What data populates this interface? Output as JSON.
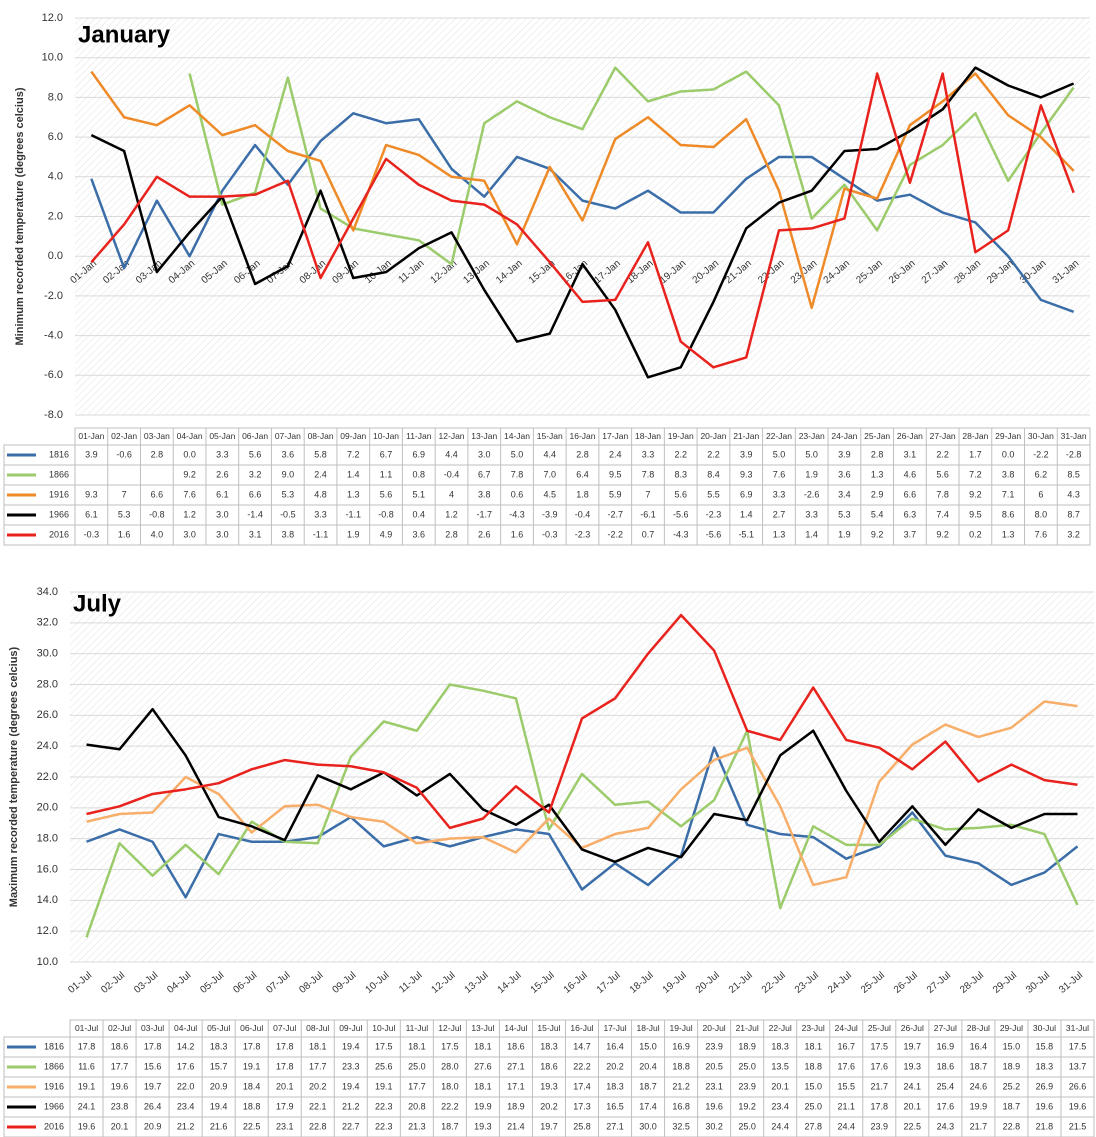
{
  "chart_data": [
    {
      "type": "line",
      "title": "January",
      "y_label": "Minimum recorded temperature (degrees celcius)",
      "categories": [
        "01-Jan",
        "02-Jan",
        "03-Jan",
        "04-Jan",
        "05-Jan",
        "06-Jan",
        "07-Jan",
        "08-Jan",
        "09-Jan",
        "10-Jan",
        "11-Jan",
        "12-Jan",
        "13-Jan",
        "14-Jan",
        "15-Jan",
        "16-Jan",
        "17-Jan",
        "18-Jan",
        "19-Jan",
        "20-Jan",
        "21-Jan",
        "22-Jan",
        "23-Jan",
        "24-Jan",
        "25-Jan",
        "26-Jan",
        "27-Jan",
        "28-Jan",
        "29-Jan",
        "30-Jan",
        "31-Jan"
      ],
      "series": [
        {
          "name": "1816",
          "color": "#3b6ea8",
          "values": [
            3.9,
            -0.6,
            2.8,
            0.0,
            3.3,
            5.6,
            3.6,
            5.8,
            7.2,
            6.7,
            6.9,
            4.4,
            3.0,
            5.0,
            4.4,
            2.8,
            2.4,
            3.3,
            2.2,
            2.2,
            3.9,
            5.0,
            5.0,
            3.9,
            2.8,
            3.1,
            2.2,
            1.7,
            0.0,
            -2.2,
            -2.8
          ],
          "value_labels": [
            "3.9",
            "-0.6",
            "2.8",
            "0.0",
            "3.3",
            "5.6",
            "3.6",
            "5.8",
            "7.2",
            "6.7",
            "6.9",
            "4.4",
            "3.0",
            "5.0",
            "4.4",
            "2.8",
            "2.4",
            "3.3",
            "2.2",
            "2.2",
            "3.9",
            "5.0",
            "5.0",
            "3.9",
            "2.8",
            "3.1",
            "2.2",
            "1.7",
            "0.0",
            "-2.2",
            "-2.8"
          ]
        },
        {
          "name": "1866",
          "color": "#9bcb6b",
          "values": [
            null,
            null,
            null,
            9.2,
            2.6,
            3.2,
            9.0,
            2.4,
            1.4,
            1.1,
            0.8,
            -0.4,
            6.7,
            7.8,
            7.0,
            6.4,
            9.5,
            7.8,
            8.3,
            8.4,
            9.3,
            7.6,
            1.9,
            3.6,
            1.3,
            4.6,
            5.6,
            7.2,
            3.8,
            6.2,
            8.5
          ],
          "value_labels": [
            null,
            null,
            null,
            "9.2",
            "2.6",
            "3.2",
            "9.0",
            "2.4",
            "1.4",
            "1.1",
            "0.8",
            "-0.4",
            "6.7",
            "7.8",
            "7.0",
            "6.4",
            "9.5",
            "7.8",
            "8.3",
            "8.4",
            "9.3",
            "7.6",
            "1.9",
            "3.6",
            "1.3",
            "4.6",
            "5.6",
            "7.2",
            "3.8",
            "6.2",
            "8.5"
          ]
        },
        {
          "name": "1916",
          "color": "#ee8a28",
          "values": [
            9.3,
            7,
            6.6,
            7.6,
            6.1,
            6.6,
            5.3,
            4.8,
            1.3,
            5.6,
            5.1,
            4,
            3.8,
            0.6,
            4.5,
            1.8,
            5.9,
            7,
            5.6,
            5.5,
            6.9,
            3.3,
            -2.6,
            3.4,
            2.9,
            6.6,
            7.8,
            9.2,
            7.1,
            6,
            4.3
          ],
          "value_labels": [
            "9.3",
            "7",
            "6.6",
            "7.6",
            "6.1",
            "6.6",
            "5.3",
            "4.8",
            "1.3",
            "5.6",
            "5.1",
            "4",
            "3.8",
            "0.6",
            "4.5",
            "1.8",
            "5.9",
            "7",
            "5.6",
            "5.5",
            "6.9",
            "3.3",
            "-2.6",
            "3.4",
            "2.9",
            "6.6",
            "7.8",
            "9.2",
            "7.1",
            "6",
            "4.3"
          ]
        },
        {
          "name": "1966",
          "color": "#000000",
          "values": [
            6.1,
            5.3,
            -0.8,
            1.2,
            3.0,
            -1.4,
            -0.5,
            3.3,
            -1.1,
            -0.8,
            0.4,
            1.2,
            -1.7,
            -4.3,
            -3.9,
            -0.4,
            -2.7,
            -6.1,
            -5.6,
            -2.3,
            1.4,
            2.7,
            3.3,
            5.3,
            5.4,
            6.3,
            7.4,
            9.5,
            8.6,
            8.0,
            8.7
          ],
          "value_labels": [
            "6.1",
            "5.3",
            "-0.8",
            "1.2",
            "3.0",
            "-1.4",
            "-0.5",
            "3.3",
            "-1.1",
            "-0.8",
            "0.4",
            "1.2",
            "-1.7",
            "-4.3",
            "-3.9",
            "-0.4",
            "-2.7",
            "-6.1",
            "-5.6",
            "-2.3",
            "1.4",
            "2.7",
            "3.3",
            "5.3",
            "5.4",
            "6.3",
            "7.4",
            "9.5",
            "8.6",
            "8.0",
            "8.7"
          ]
        },
        {
          "name": "2016",
          "color": "#e8231e",
          "values": [
            -0.3,
            1.6,
            4.0,
            3.0,
            3.0,
            3.1,
            3.8,
            -1.1,
            1.9,
            4.9,
            3.6,
            2.8,
            2.6,
            1.6,
            -0.3,
            -2.3,
            -2.2,
            0.7,
            -4.3,
            -5.6,
            -5.1,
            1.3,
            1.4,
            1.9,
            9.2,
            3.7,
            9.2,
            0.2,
            1.3,
            7.6,
            3.2
          ],
          "value_labels": [
            "-0.3",
            "1.6",
            "4.0",
            "3.0",
            "3.0",
            "3.1",
            "3.8",
            "-1.1",
            "1.9",
            "4.9",
            "3.6",
            "2.8",
            "2.6",
            "1.6",
            "-0.3",
            "-2.3",
            "-2.2",
            "0.7",
            "-4.3",
            "-5.6",
            "-5.1",
            "1.3",
            "1.4",
            "1.9",
            "9.2",
            "3.7",
            "9.2",
            "0.2",
            "1.3",
            "7.6",
            "3.2"
          ]
        }
      ],
      "ylim": [
        -8,
        12
      ],
      "yticks": [
        {
          "value": -8,
          "label": "-8.0"
        },
        {
          "value": -6,
          "label": "-6.0"
        },
        {
          "value": -4,
          "label": "-4.0"
        },
        {
          "value": -2,
          "label": "-2.0"
        },
        {
          "value": 0,
          "label": "0.0"
        },
        {
          "value": 2,
          "label": "2.0"
        },
        {
          "value": 4,
          "label": "4.0"
        },
        {
          "value": 6,
          "label": "6.0"
        },
        {
          "value": 8,
          "label": "8.0"
        },
        {
          "value": 10,
          "label": "10.0"
        },
        {
          "value": 12,
          "label": "12.0"
        }
      ],
      "grid": true
    },
    {
      "type": "line",
      "title": "July",
      "y_label": "Maximum recorded temperature (degrees celcius)",
      "categories": [
        "01-Jul",
        "02-Jul",
        "03-Jul",
        "04-Jul",
        "05-Jul",
        "06-Jul",
        "07-Jul",
        "08-Jul",
        "09-Jul",
        "10-Jul",
        "11-Jul",
        "12-Jul",
        "13-Jul",
        "14-Jul",
        "15-Jul",
        "16-Jul",
        "17-Jul",
        "18-Jul",
        "19-Jul",
        "20-Jul",
        "21-Jul",
        "22-Jul",
        "23-Jul",
        "24-Jul",
        "25-Jul",
        "26-Jul",
        "27-Jul",
        "28-Jul",
        "29-Jul",
        "30-Jul",
        "31-Jul"
      ],
      "series": [
        {
          "name": "1816",
          "color": "#3b6ea8",
          "values": [
            17.8,
            18.6,
            17.8,
            14.2,
            18.3,
            17.8,
            17.8,
            18.1,
            19.4,
            17.5,
            18.1,
            17.5,
            18.1,
            18.6,
            18.3,
            14.7,
            16.4,
            15.0,
            16.9,
            23.9,
            18.9,
            18.3,
            18.1,
            16.7,
            17.5,
            19.7,
            16.9,
            16.4,
            15.0,
            15.8,
            17.5
          ],
          "value_labels": [
            "17.8",
            "18.6",
            "17.8",
            "14.2",
            "18.3",
            "17.8",
            "17.8",
            "18.1",
            "19.4",
            "17.5",
            "18.1",
            "17.5",
            "18.1",
            "18.6",
            "18.3",
            "14.7",
            "16.4",
            "15.0",
            "16.9",
            "23.9",
            "18.9",
            "18.3",
            "18.1",
            "16.7",
            "17.5",
            "19.7",
            "16.9",
            "16.4",
            "15.0",
            "15.8",
            "17.5"
          ]
        },
        {
          "name": "1866",
          "color": "#9bcb6b",
          "values": [
            11.6,
            17.7,
            15.6,
            17.6,
            15.7,
            19.1,
            17.8,
            17.7,
            23.3,
            25.6,
            25.0,
            28.0,
            27.6,
            27.1,
            18.6,
            22.2,
            20.2,
            20.4,
            18.8,
            20.5,
            25.0,
            13.5,
            18.8,
            17.6,
            17.6,
            19.3,
            18.6,
            18.7,
            18.9,
            18.3,
            13.7
          ],
          "value_labels": [
            "11.6",
            "17.7",
            "15.6",
            "17.6",
            "15.7",
            "19.1",
            "17.8",
            "17.7",
            "23.3",
            "25.6",
            "25.0",
            "28.0",
            "27.6",
            "27.1",
            "18.6",
            "22.2",
            "20.2",
            "20.4",
            "18.8",
            "20.5",
            "25.0",
            "13.5",
            "18.8",
            "17.6",
            "17.6",
            "19.3",
            "18.6",
            "18.7",
            "18.9",
            "18.3",
            "13.7"
          ]
        },
        {
          "name": "1916",
          "color": "#f6ae6a",
          "values": [
            19.1,
            19.6,
            19.7,
            22.0,
            20.9,
            18.4,
            20.1,
            20.2,
            19.4,
            19.1,
            17.7,
            18.0,
            18.1,
            17.1,
            19.3,
            17.4,
            18.3,
            18.7,
            21.2,
            23.1,
            23.9,
            20.1,
            15.0,
            15.5,
            21.7,
            24.1,
            25.4,
            24.6,
            25.2,
            26.9,
            26.6
          ],
          "value_labels": [
            "19.1",
            "19.6",
            "19.7",
            "22.0",
            "20.9",
            "18.4",
            "20.1",
            "20.2",
            "19.4",
            "19.1",
            "17.7",
            "18.0",
            "18.1",
            "17.1",
            "19.3",
            "17.4",
            "18.3",
            "18.7",
            "21.2",
            "23.1",
            "23.9",
            "20.1",
            "15.0",
            "15.5",
            "21.7",
            "24.1",
            "25.4",
            "24.6",
            "25.2",
            "26.9",
            "26.6"
          ]
        },
        {
          "name": "1966",
          "color": "#000000",
          "values": [
            24.1,
            23.8,
            26.4,
            23.4,
            19.4,
            18.8,
            17.9,
            22.1,
            21.2,
            22.3,
            20.8,
            22.2,
            19.9,
            18.9,
            20.2,
            17.3,
            16.5,
            17.4,
            16.8,
            19.6,
            19.2,
            23.4,
            25.0,
            21.1,
            17.8,
            20.1,
            17.6,
            19.9,
            18.7,
            19.6,
            19.6
          ],
          "value_labels": [
            "24.1",
            "23.8",
            "26.4",
            "23.4",
            "19.4",
            "18.8",
            "17.9",
            "22.1",
            "21.2",
            "22.3",
            "20.8",
            "22.2",
            "19.9",
            "18.9",
            "20.2",
            "17.3",
            "16.5",
            "17.4",
            "16.8",
            "19.6",
            "19.2",
            "23.4",
            "25.0",
            "21.1",
            "17.8",
            "20.1",
            "17.6",
            "19.9",
            "18.7",
            "19.6",
            "19.6"
          ]
        },
        {
          "name": "2016",
          "color": "#e8231e",
          "values": [
            19.6,
            20.1,
            20.9,
            21.2,
            21.6,
            22.5,
            23.1,
            22.8,
            22.7,
            22.3,
            21.3,
            18.7,
            19.3,
            21.4,
            19.7,
            25.8,
            27.1,
            30.0,
            32.5,
            30.2,
            25.0,
            24.4,
            27.8,
            24.4,
            23.9,
            22.5,
            24.3,
            21.7,
            22.8,
            21.8,
            21.5
          ],
          "value_labels": [
            "19.6",
            "20.1",
            "20.9",
            "21.2",
            "21.6",
            "22.5",
            "23.1",
            "22.8",
            "22.7",
            "22.3",
            "21.3",
            "18.7",
            "19.3",
            "21.4",
            "19.7",
            "25.8",
            "27.1",
            "30.0",
            "32.5",
            "30.2",
            "25.0",
            "24.4",
            "27.8",
            "24.4",
            "23.9",
            "22.5",
            "24.3",
            "21.7",
            "22.8",
            "21.8",
            "21.5"
          ]
        }
      ],
      "ylim": [
        10,
        34
      ],
      "yticks": [
        {
          "value": 10,
          "label": "10.0"
        },
        {
          "value": 12,
          "label": "12.0"
        },
        {
          "value": 14,
          "label": "14.0"
        },
        {
          "value": 16,
          "label": "16.0"
        },
        {
          "value": 18,
          "label": "18.0"
        },
        {
          "value": 20,
          "label": "20.0"
        },
        {
          "value": 22,
          "label": "22.0"
        },
        {
          "value": 24,
          "label": "24.0"
        },
        {
          "value": 26,
          "label": "26.0"
        },
        {
          "value": 28,
          "label": "28.0"
        },
        {
          "value": 30,
          "label": "30.0"
        },
        {
          "value": 32,
          "label": "32.0"
        },
        {
          "value": 34,
          "label": "34.0"
        }
      ],
      "grid": true
    }
  ]
}
